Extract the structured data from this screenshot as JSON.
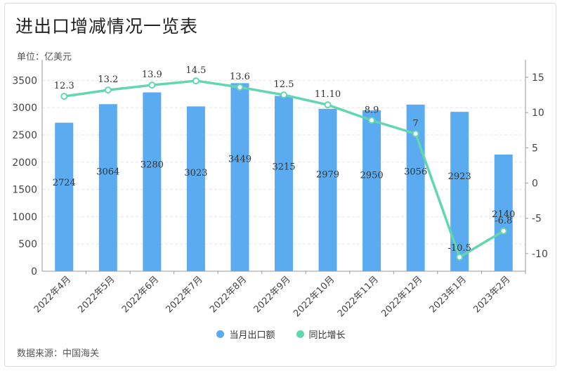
{
  "title": "进出口增减情况一览表",
  "unit_label": "单位：亿美元",
  "source": "数据来源：中国海关",
  "colors": {
    "bar": "#5aabf0",
    "line": "#62d6b0",
    "grid": "#e6e6e6",
    "axis": "#999999"
  },
  "chart_data": {
    "type": "bar+line",
    "categories": [
      "2022年4月",
      "2022年5月",
      "2022年6月",
      "2022年7月",
      "2022年8月",
      "2022年9月",
      "2022年10月",
      "2022年11月",
      "2022年12月",
      "2023年1月",
      "2023年2月"
    ],
    "series": [
      {
        "name": "当月出口额",
        "type": "bar",
        "axis": "left",
        "values": [
          2724,
          3064,
          3280,
          3023,
          3449,
          3215,
          2979,
          2950,
          3056,
          2923,
          2140
        ],
        "labels": [
          "2724",
          "3064",
          "3280",
          "3023",
          "3449",
          "3215",
          "2979",
          "2950",
          "3056",
          "2923",
          "2140"
        ]
      },
      {
        "name": "同比增长",
        "type": "line",
        "axis": "right",
        "values": [
          12.3,
          13.2,
          13.9,
          14.5,
          13.6,
          12.5,
          11.1,
          8.9,
          7,
          -10.5,
          -6.8
        ],
        "labels": [
          "12.3",
          "13.2",
          "13.9",
          "14.5",
          "13.6",
          "12.5",
          "11.10",
          "8.9",
          "7",
          "-10.5",
          "-6.8"
        ]
      }
    ],
    "y_left": {
      "min": 0,
      "max": 3750,
      "ticks": [
        0,
        500,
        1000,
        1500,
        2000,
        2500,
        3000,
        3500
      ]
    },
    "y_right": {
      "min": -12.5,
      "max": 16.5,
      "ticks": [
        -10,
        -5,
        0,
        5,
        10,
        15
      ]
    },
    "legend_position": "bottom-center",
    "grid": true
  },
  "legend": [
    {
      "label": "当月出口额",
      "color": "#5aabf0"
    },
    {
      "label": "同比增长",
      "color": "#62d6b0"
    }
  ]
}
